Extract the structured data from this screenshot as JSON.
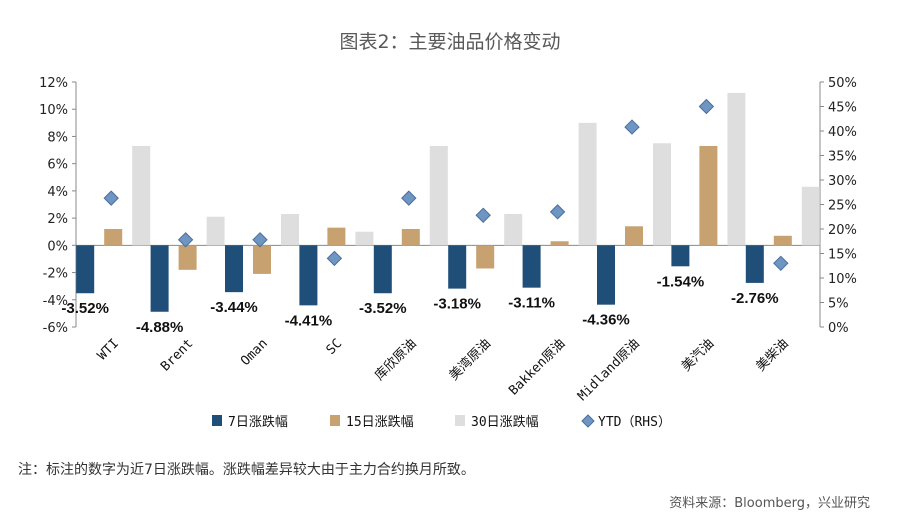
{
  "chart_data": {
    "type": "bar",
    "title": "图表2：主要油品价格变动",
    "categories": [
      "WTI",
      "Brent",
      "Oman",
      "SC",
      "库欣原油",
      "美湾原油",
      "Bakken原油",
      "Midland原油",
      "美汽油",
      "美柴油"
    ],
    "series": [
      {
        "name": "7日涨跌幅",
        "axis": "left",
        "color": "#1f4e79",
        "values": [
          -3.52,
          -4.88,
          -3.44,
          -4.41,
          -3.52,
          -3.18,
          -3.11,
          -4.36,
          -1.54,
          -2.76
        ]
      },
      {
        "name": "15日涨跌幅",
        "axis": "left",
        "color": "#c7a270",
        "values": [
          1.2,
          -1.8,
          -2.1,
          1.3,
          1.2,
          -1.7,
          0.3,
          1.4,
          7.3,
          0.7
        ]
      },
      {
        "name": "30日涨跌幅",
        "axis": "left",
        "color": "#dedede",
        "values": [
          7.3,
          2.1,
          2.3,
          1.0,
          7.3,
          2.3,
          9.0,
          7.5,
          11.2,
          4.3
        ]
      },
      {
        "name": "YTD（RHS）",
        "axis": "right",
        "color": "#6f95c3",
        "marker": "diamond",
        "values": [
          26.3,
          17.8,
          17.8,
          14.0,
          26.3,
          22.8,
          23.5,
          40.8,
          45.0,
          13.0
        ]
      }
    ],
    "data_labels": [
      "-3.52%",
      "-4.88%",
      "-3.44%",
      "-4.41%",
      "-3.52%",
      "-3.18%",
      "-3.11%",
      "-4.36%",
      "-1.54%",
      "-2.76%"
    ],
    "left_axis": {
      "min": -6,
      "max": 12,
      "step": 2,
      "ticks": [
        "12%",
        "10%",
        "8%",
        "6%",
        "4%",
        "2%",
        "0%",
        "-2%",
        "-4%",
        "-6%"
      ]
    },
    "right_axis": {
      "min": 0,
      "max": 50,
      "step": 5,
      "ticks": [
        "50%",
        "45%",
        "40%",
        "35%",
        "30%",
        "25%",
        "20%",
        "15%",
        "10%",
        "5%",
        "0%"
      ]
    },
    "legend": {
      "position": "bottom",
      "entries": [
        "7日涨跌幅",
        "15日涨跌幅",
        "30日涨跌幅",
        "YTD（RHS）"
      ]
    }
  },
  "note": "注：标注的数字为近7日涨跌幅。涨跌幅差异较大由于主力合约换月所致。",
  "source": "资料来源：Bloomberg，兴业研究"
}
